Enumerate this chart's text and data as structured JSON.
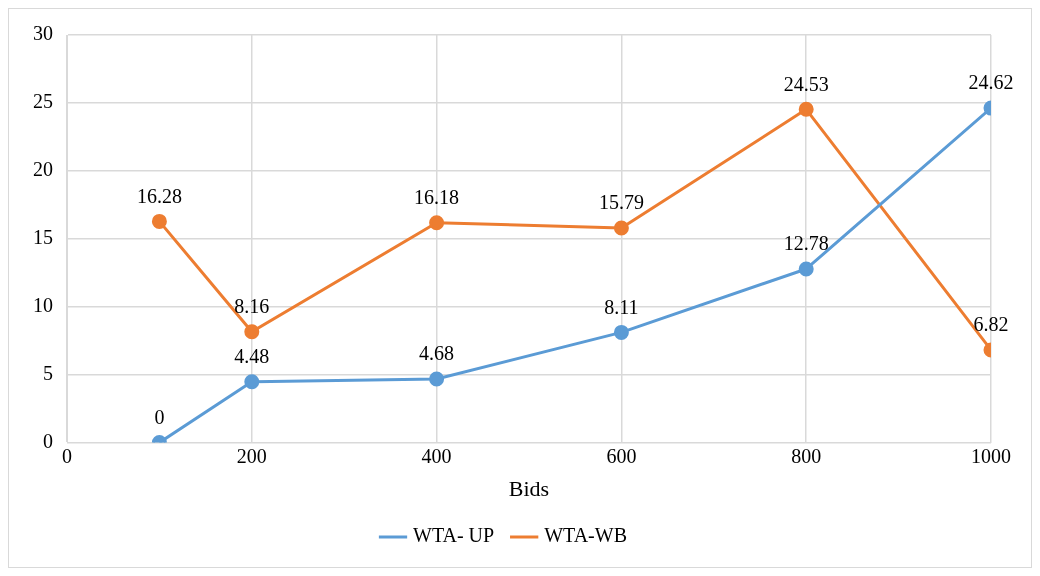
{
  "chart_data": {
    "type": "line",
    "xlabel": "Bids",
    "x": [
      100,
      200,
      400,
      600,
      800,
      1000
    ],
    "series": [
      {
        "name": "WTA- UP",
        "color": "#5b9bd5",
        "values": [
          0,
          4.48,
          4.68,
          8.11,
          12.78,
          24.62
        ]
      },
      {
        "name": "WTA-WB",
        "color": "#ed7d31",
        "values": [
          16.28,
          8.16,
          16.18,
          15.79,
          24.53,
          6.82
        ]
      }
    ],
    "xlim": [
      0,
      1000
    ],
    "xticks": [
      0,
      200,
      400,
      600,
      800,
      1000
    ],
    "ylim": [
      0,
      30
    ],
    "yticks": [
      0,
      5,
      10,
      15,
      20,
      25,
      30
    ],
    "grid": true,
    "legend": "bottom",
    "marker": "circle",
    "line_style": "solid",
    "data_labels": true
  }
}
